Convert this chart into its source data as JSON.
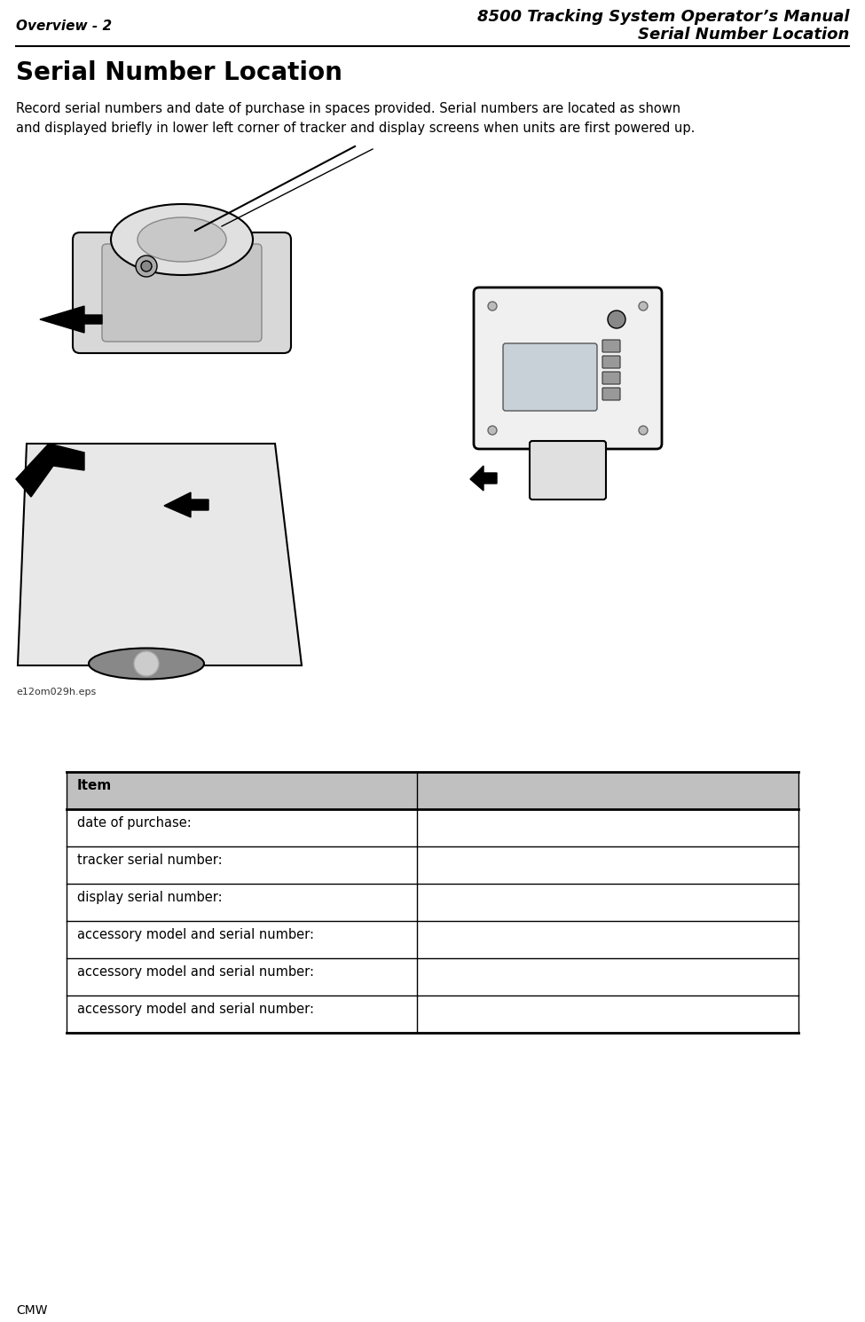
{
  "header_left": "Overview - 2",
  "header_right_line1": "8500 Tracking System Operator’s Manual",
  "header_right_line2": "Serial Number Location",
  "section_title": "Serial Number Location",
  "body_text": "Record serial numbers and date of purchase in spaces provided. Serial numbers are located as shown\nand displayed briefly in lower left corner of tracker and display screens when units are first powered up.",
  "image_caption": "e12om029h.eps",
  "table_header": "Item",
  "table_rows": [
    "date of purchase:",
    "tracker serial number:",
    "display serial number:",
    "accessory model and serial number:",
    "accessory model and serial number:",
    "accessory model and serial number:"
  ],
  "footer_left": "CMW",
  "bg_color": "#ffffff",
  "header_line_color": "#000000",
  "table_header_bg": "#c0c0c0",
  "font_color": "#000000"
}
